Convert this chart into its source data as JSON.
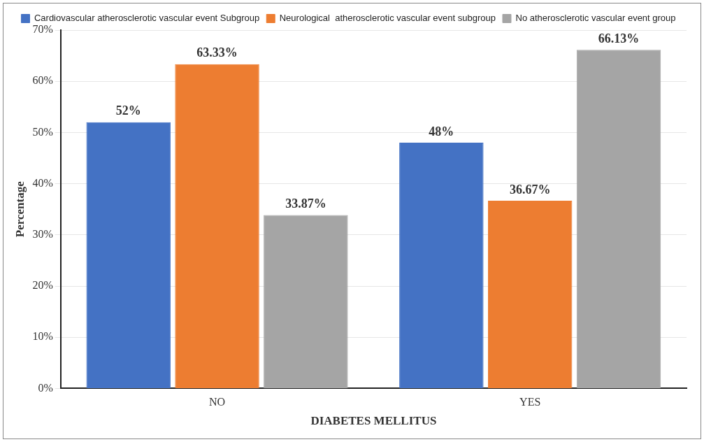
{
  "chart_data": {
    "type": "bar",
    "xlabel": "DIABETES MELLITUS",
    "ylabel": "Percentage",
    "categories": [
      "NO",
      "YES"
    ],
    "series": [
      {
        "name": "Cardiovascular atherosclerotic vascular event Subgroup",
        "color": "#4472c4",
        "values": [
          52,
          48
        ],
        "value_labels": [
          "52%",
          "48%"
        ]
      },
      {
        "name": "Neurological  atherosclerotic vascular event subgroup",
        "color": "#ed7d31",
        "values": [
          63.33,
          36.67
        ],
        "value_labels": [
          "63.33%",
          "36.67%"
        ]
      },
      {
        "name": "No atherosclerotic vascular event group",
        "color": "#a5a5a5",
        "values": [
          33.87,
          66.13
        ],
        "value_labels": [
          "33.87%",
          "66.13%"
        ]
      }
    ],
    "ylim": [
      0,
      70
    ],
    "yticks": [
      {
        "value": 0,
        "label": "0%"
      },
      {
        "value": 10,
        "label": "10%"
      },
      {
        "value": 20,
        "label": "20%"
      },
      {
        "value": 30,
        "label": "30%"
      },
      {
        "value": 40,
        "label": "40%"
      },
      {
        "value": 50,
        "label": "50%"
      },
      {
        "value": 60,
        "label": "60%"
      },
      {
        "value": 70,
        "label": "70%"
      }
    ],
    "grid": "y",
    "legend": "top"
  }
}
